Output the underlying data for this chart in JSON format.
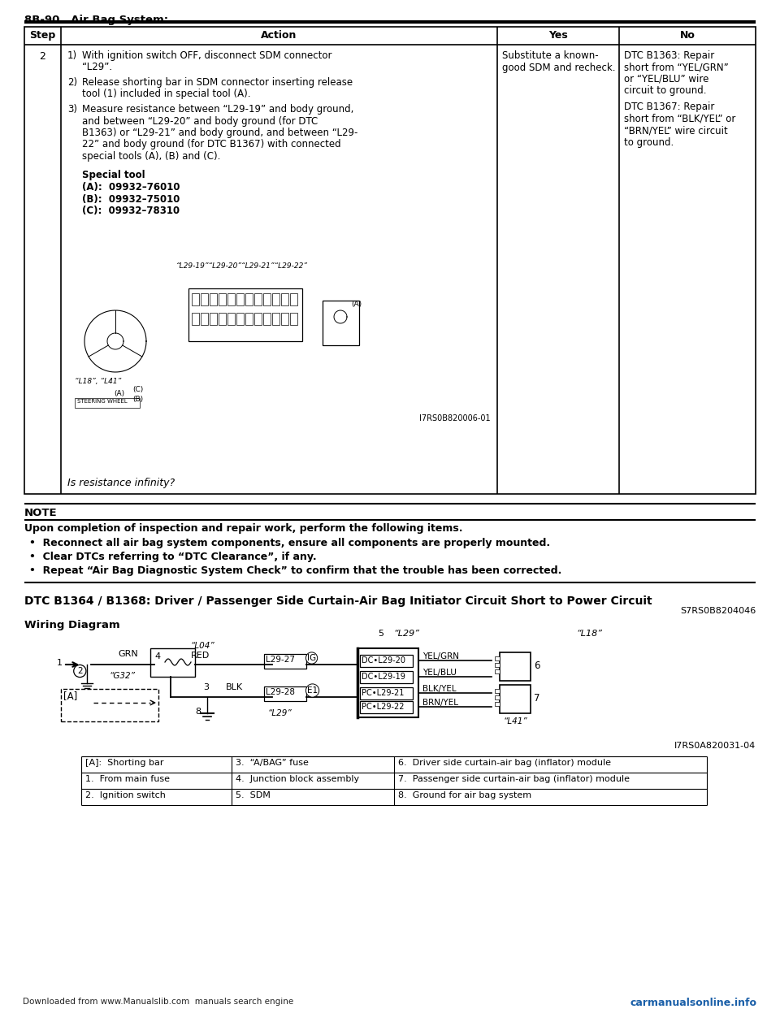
{
  "page_header": "8B-90   Air Bag System:",
  "table_headers": [
    "Step",
    "Action",
    "Yes",
    "No"
  ],
  "table_step": "2",
  "action_paragraphs": [
    {
      "num": "1)",
      "text": "With ignition switch OFF, disconnect SDM connector\n“L29”."
    },
    {
      "num": "2)",
      "text": "Release shorting bar in SDM connector inserting release\ntool (1) included in special tool (A)."
    },
    {
      "num": "3)",
      "text": "Measure resistance between “L29-19” and body ground,\nand between “L29-20” and body ground (for DTC\nB1363) or “L29-21” and body ground, and between “L29-\n22” and body ground (for DTC B1367) with connected\nspecial tools (A), (B) and (C)."
    }
  ],
  "special_tool_title": "Special tool",
  "special_tool_lines": [
    "(A):  09932–76010",
    "(B):  09932–75010",
    "(C):  09932–78310"
  ],
  "table_yes": [
    "Substitute a known-",
    "good SDM and recheck."
  ],
  "table_no_p1": [
    "DTC B1363: Repair",
    "short from “YEL/GRN”",
    "or “YEL/BLU” wire",
    "circuit to ground."
  ],
  "table_no_p2": [
    "DTC B1367: Repair",
    "short from “BLK/YEL” or",
    "“BRN/YEL” wire circuit",
    "to ground."
  ],
  "table_question": "Is resistance infinity?",
  "image_ref": "I7RS0B820006-01",
  "note_title": "NOTE",
  "note_line1": "Upon completion of inspection and repair work, perform the following items.",
  "note_bullets": [
    "Reconnect all air bag system components, ensure all components are properly mounted.",
    "Clear DTCs referring to “DTC Clearance”, if any.",
    "Repeat “Air Bag Diagnostic System Check” to confirm that the trouble has been corrected."
  ],
  "section_title": "DTC B1364 / B1368: Driver / Passenger Side Curtain-Air Bag Initiator Circuit Short to Power Circuit",
  "section_code": "S7RS0B8204046",
  "wiring_title": "Wiring Diagram",
  "wiring_ref": "I7RS0A820031-04",
  "footer_left": "Downloaded from www.Manualslib.com  manuals search engine",
  "footer_right": "carmanualsonline.info",
  "bg_color": "#ffffff"
}
